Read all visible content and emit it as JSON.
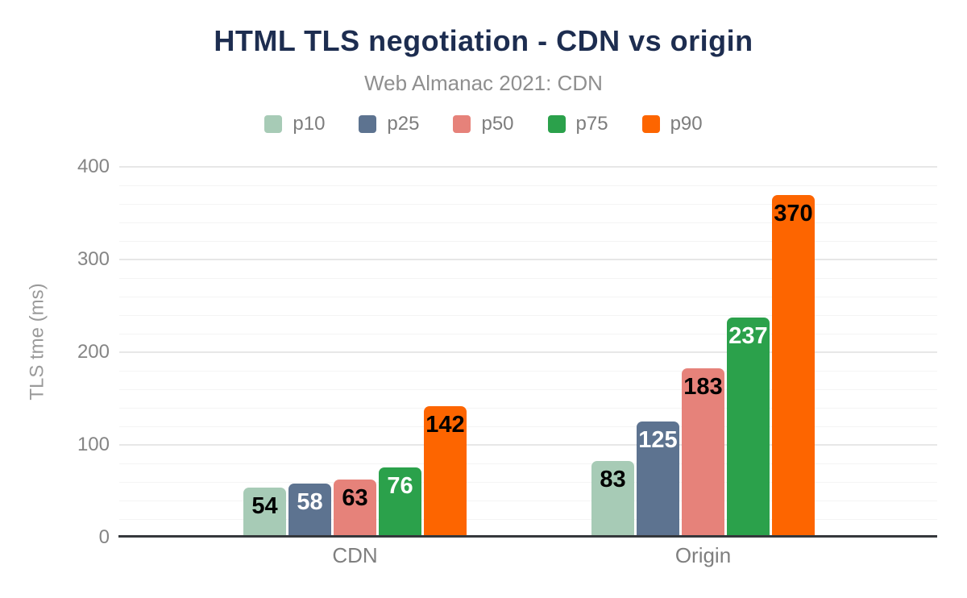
{
  "chart_data": {
    "type": "bar",
    "title": "HTML TLS negotiation - CDN vs origin",
    "subtitle": "Web Almanac 2021: CDN",
    "xlabel": "",
    "ylabel": "TLS tme (ms)",
    "categories": [
      "CDN",
      "Origin"
    ],
    "series": [
      {
        "name": "p10",
        "color": "#a7cbb6",
        "label_color": "#000000",
        "values": [
          54,
          83
        ]
      },
      {
        "name": "p25",
        "color": "#5d7390",
        "label_color": "#ffffff",
        "values": [
          58,
          125
        ]
      },
      {
        "name": "p50",
        "color": "#e6827a",
        "label_color": "#000000",
        "values": [
          63,
          183
        ]
      },
      {
        "name": "p75",
        "color": "#2ba14b",
        "label_color": "#ffffff",
        "values": [
          76,
          237
        ]
      },
      {
        "name": "p90",
        "color": "#fd6500",
        "label_color": "#000000",
        "values": [
          142,
          370
        ]
      }
    ],
    "ylim": [
      0,
      400
    ],
    "yticks": [
      0,
      100,
      200,
      300,
      400
    ],
    "minor_grid_step": 20,
    "major_grid_step": 100,
    "grid": true,
    "legend_position": "top"
  },
  "theme": {
    "background_color": "#ffffff",
    "title_color": "#1d2d50",
    "subtitle_color": "#8f8f8f",
    "axis_title_color": "#9a9a9a",
    "tick_label_color": "#858585",
    "category_label_color": "#7f7f7f",
    "legend_label_color": "#7d7d7d",
    "grid_major_color": "#e7e7e7",
    "grid_minor_color": "#f4f4f4",
    "axis_line_color": "#35383c"
  }
}
